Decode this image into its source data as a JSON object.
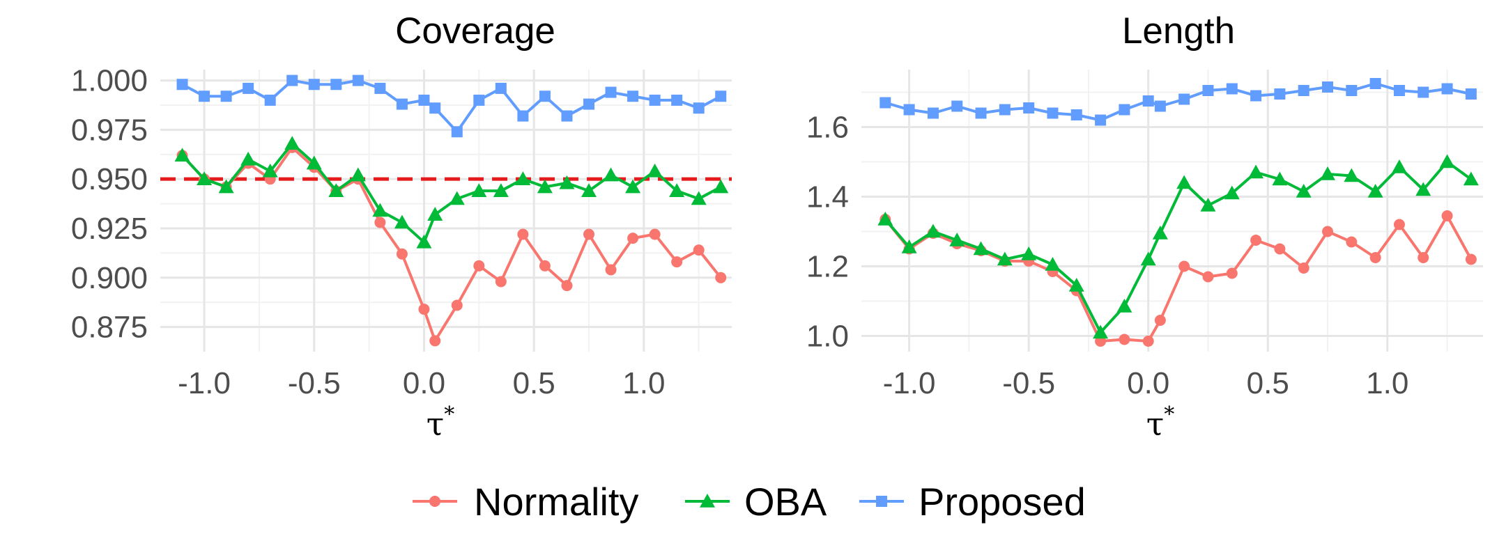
{
  "colors": {
    "Normality": "#F8766D",
    "OBA": "#00BA38",
    "Proposed": "#619CFF",
    "reference_line": "#E41A1C"
  },
  "legend": {
    "items": [
      {
        "label": "Normality",
        "color": "#F8766D",
        "marker": "circle"
      },
      {
        "label": "OBA",
        "color": "#00BA38",
        "marker": "triangle"
      },
      {
        "label": "Proposed",
        "color": "#619CFF",
        "marker": "square"
      }
    ],
    "position": "bottom"
  },
  "chart_data": [
    {
      "type": "line",
      "title": "Coverage",
      "xlabel": "τ",
      "xlabel_superscript": "*",
      "ylabel": "",
      "xlim": [
        -1.2,
        1.4
      ],
      "ylim": [
        0.8625,
        1.0055
      ],
      "xticks": [
        -1.0,
        -0.5,
        0.0,
        0.5,
        1.0
      ],
      "xtick_labels": [
        "-1.0",
        "-0.5",
        "0.0",
        "0.5",
        "1.0"
      ],
      "yticks": [
        0.875,
        0.9,
        0.925,
        0.95,
        0.975,
        1.0
      ],
      "ytick_labels": [
        "0.875",
        "0.900",
        "0.925",
        "0.950",
        "0.975",
        "1.000"
      ],
      "grid": true,
      "reference_line": {
        "y": 0.95,
        "style": "dashed",
        "color": "#E41A1C"
      },
      "x": [
        -1.1,
        -1.0,
        -0.9,
        -0.8,
        -0.7,
        -0.6,
        -0.5,
        -0.4,
        -0.3,
        -0.2,
        -0.1,
        0.0,
        0.05,
        0.15,
        0.25,
        0.35,
        0.45,
        0.55,
        0.65,
        0.75,
        0.85,
        0.95,
        1.05,
        1.15,
        1.25,
        1.35
      ],
      "series": [
        {
          "name": "Normality",
          "values": [
            0.962,
            0.95,
            0.946,
            0.958,
            0.95,
            0.966,
            0.956,
            0.944,
            0.95,
            0.928,
            0.912,
            0.884,
            0.868,
            0.886,
            0.906,
            0.898,
            0.922,
            0.906,
            0.896,
            0.922,
            0.904,
            0.92,
            0.922,
            0.908,
            0.914,
            0.9
          ]
        },
        {
          "name": "OBA",
          "values": [
            0.962,
            0.95,
            0.946,
            0.96,
            0.954,
            0.968,
            0.958,
            0.944,
            0.952,
            0.934,
            0.928,
            0.918,
            0.932,
            0.94,
            0.944,
            0.944,
            0.95,
            0.946,
            0.948,
            0.944,
            0.952,
            0.946,
            0.954,
            0.944,
            0.94,
            0.946
          ]
        },
        {
          "name": "Proposed",
          "values": [
            0.998,
            0.992,
            0.992,
            0.996,
            0.99,
            1.0,
            0.998,
            0.998,
            1.0,
            0.996,
            0.988,
            0.99,
            0.986,
            0.974,
            0.99,
            0.996,
            0.982,
            0.992,
            0.982,
            0.988,
            0.994,
            0.992,
            0.99,
            0.99,
            0.986,
            0.992
          ]
        }
      ]
    },
    {
      "type": "line",
      "title": "Length",
      "xlabel": "τ",
      "xlabel_superscript": "*",
      "ylabel": "",
      "xlim": [
        -1.2,
        1.4
      ],
      "ylim": [
        0.955,
        1.765
      ],
      "xticks": [
        -1.0,
        -0.5,
        0.0,
        0.5,
        1.0
      ],
      "xtick_labels": [
        "-1.0",
        "-0.5",
        "0.0",
        "0.5",
        "1.0"
      ],
      "yticks": [
        1.0,
        1.2,
        1.4,
        1.6
      ],
      "ytick_labels": [
        "1.0",
        "1.2",
        "1.4",
        "1.6"
      ],
      "grid": true,
      "x": [
        -1.1,
        -1.0,
        -0.9,
        -0.8,
        -0.7,
        -0.6,
        -0.5,
        -0.4,
        -0.3,
        -0.2,
        -0.1,
        0.0,
        0.05,
        0.15,
        0.25,
        0.35,
        0.45,
        0.55,
        0.65,
        0.75,
        0.85,
        0.95,
        1.05,
        1.15,
        1.25,
        1.35
      ],
      "series": [
        {
          "name": "Normality",
          "values": [
            1.335,
            1.25,
            1.295,
            1.265,
            1.245,
            1.215,
            1.215,
            1.185,
            1.13,
            0.985,
            0.99,
            0.985,
            1.045,
            1.2,
            1.17,
            1.18,
            1.275,
            1.25,
            1.195,
            1.3,
            1.27,
            1.225,
            1.32,
            1.225,
            1.345,
            1.22
          ]
        },
        {
          "name": "OBA",
          "values": [
            1.335,
            1.255,
            1.3,
            1.275,
            1.25,
            1.22,
            1.235,
            1.205,
            1.145,
            1.01,
            1.085,
            1.22,
            1.295,
            1.44,
            1.375,
            1.41,
            1.47,
            1.45,
            1.415,
            1.465,
            1.46,
            1.415,
            1.485,
            1.42,
            1.5,
            1.45
          ]
        },
        {
          "name": "Proposed",
          "values": [
            1.67,
            1.65,
            1.64,
            1.66,
            1.64,
            1.65,
            1.655,
            1.64,
            1.635,
            1.62,
            1.65,
            1.675,
            1.66,
            1.68,
            1.705,
            1.71,
            1.69,
            1.695,
            1.705,
            1.715,
            1.705,
            1.725,
            1.705,
            1.7,
            1.71,
            1.695
          ]
        }
      ]
    }
  ]
}
